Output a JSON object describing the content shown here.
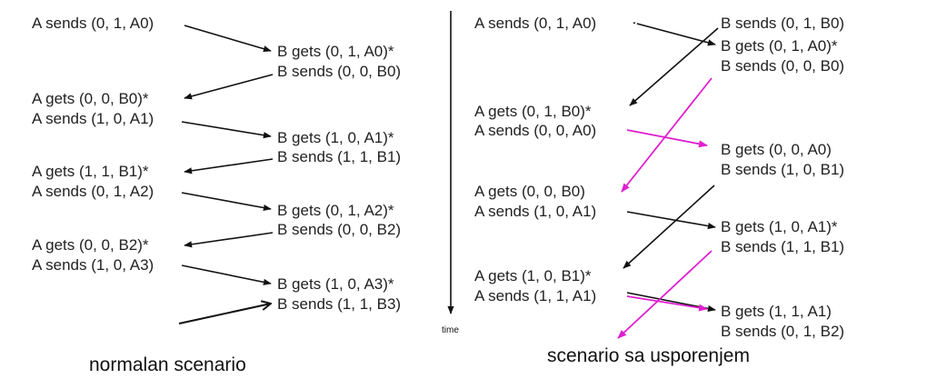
{
  "colors": {
    "text": "#222222",
    "arrow": "#111111",
    "slow_arrow": "#e01fd0",
    "background": "#ffffff"
  },
  "left": {
    "caption": "normalan scenario",
    "a_lines": [
      "A sends (0, 1, A0)",
      "A gets (0, 0, B0)*",
      "A sends (1, 0, A1)",
      "A gets (1, 1, B1)*",
      "A sends (0, 1, A2)",
      "A gets (0, 0, B2)*",
      "A sends (1, 0, A3)"
    ],
    "b_lines": [
      "B gets (0, 1, A0)*",
      "B sends (0, 0, B0)",
      "B gets (1, 0, A1)*",
      "B sends (1, 1, B1)",
      "B gets (0, 1, A2)*",
      "B sends (0, 0, B2)",
      "B gets (1, 0, A3)*",
      "B sends (1, 1, B3)"
    ]
  },
  "axis": {
    "label": "time"
  },
  "right": {
    "caption": "scenario sa usporenjem",
    "a_lines": [
      "A sends (0, 1, A0)",
      "A gets (0, 1, B0)*",
      "A sends (0, 0, A0)",
      "A gets (0, 0, B0)",
      "A sends (1, 0, A1)",
      "A gets (1, 0, B1)*",
      "A sends (1, 1, A1)"
    ],
    "b_lines": [
      "B sends (0, 1, B0)",
      "B gets (0, 1, A0)*",
      "B sends (0, 0, B0)",
      "B gets (0, 0, A0)",
      "B sends (1, 0, B1)",
      "B gets (1, 0, A1)*",
      "B sends (1, 1, B1)",
      "B gets (1, 1, A1)",
      "B sends (0, 1, B2)"
    ]
  }
}
